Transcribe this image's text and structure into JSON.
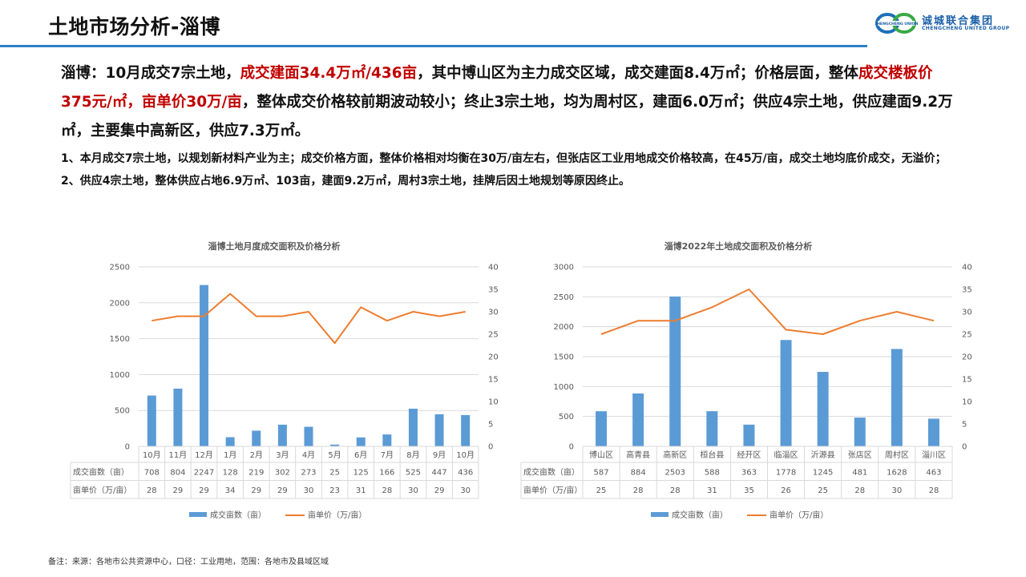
{
  "header": {
    "title": "土地市场分析-淄博",
    "logo": {
      "cn": "诚城联合集团",
      "en": "CHENGCHENG UNITED GROUP",
      "badge": "CHENGCHENG UNION"
    },
    "rule_color": "#2e7fc4"
  },
  "summary": {
    "segments": [
      {
        "text": "淄博：10月成交7宗土地，",
        "red": false
      },
      {
        "text": "成交建面34.4万㎡/436亩",
        "red": true
      },
      {
        "text": "，其中博山区为主力成交区域，成交建面8.4万㎡；价格层面，整体",
        "red": false
      },
      {
        "text": "成交楼板价375元/㎡，亩单价30万/亩",
        "red": true
      },
      {
        "text": "，整体成交价格较前期波动较小；终止3宗土地，均为周村区，建面6.0万㎡；供应4宗土地，供应建面9.2万㎡，主要集中高新区，供应7.3万㎡。",
        "red": false
      }
    ]
  },
  "points": [
    "1、本月成交7宗土地，以规划新材料产业为主；成交价格方面，整体价格相对均衡在30万/亩左右，但张店区工业用地成交价格较高，在45万/亩，成交土地均底价成交，无溢价；",
    "2、供应4宗土地，整体供应占地6.9万㎡、103亩，建面9.2万㎡，周村3宗土地，挂牌后因土地规划等原因终止。"
  ],
  "footnote": "备注：来源：各地市公共资源中心，口径：工业用地，范围：各地市及县域区域",
  "colors": {
    "bar": "#5b9bd5",
    "line": "#ed7d31",
    "grid": "#d9d9d9",
    "axis_text": "#595959",
    "red": "#c00000"
  },
  "chart_data": [
    {
      "type": "bar+line",
      "title": "淄博土地月度成交面积及价格分析",
      "categories": [
        "10月",
        "11月",
        "12月",
        "1月",
        "2月",
        "3月",
        "4月",
        "5月",
        "6月",
        "7月",
        "8月",
        "9月",
        "10月"
      ],
      "series": [
        {
          "name": "成交亩数（亩）",
          "type": "bar",
          "axis": "left",
          "values": [
            708,
            804,
            2247,
            128,
            219,
            302,
            273,
            25,
            125,
            166,
            525,
            447,
            436
          ]
        },
        {
          "name": "亩单价（万/亩）",
          "type": "line",
          "axis": "right",
          "values": [
            28,
            29,
            29,
            34,
            29,
            29,
            30,
            23,
            31,
            28,
            30,
            29,
            30
          ]
        }
      ],
      "y_left": {
        "min": 0,
        "max": 2500,
        "ticks": [
          0,
          500,
          1000,
          1500,
          2000,
          2500
        ]
      },
      "y_right": {
        "min": 0,
        "max": 40,
        "ticks": [
          0,
          5,
          10,
          15,
          20,
          25,
          30,
          35,
          40
        ]
      },
      "data_table": true,
      "legend_position": "bottom",
      "grid": true
    },
    {
      "type": "bar+line",
      "title": "淄博2022年土地成交面积及价格分析",
      "categories": [
        "博山区",
        "高青县",
        "高新区",
        "桓台县",
        "经开区",
        "临淄区",
        "沂源县",
        "张店区",
        "周村区",
        "淄川区"
      ],
      "series": [
        {
          "name": "成交亩数（亩）",
          "type": "bar",
          "axis": "left",
          "values": [
            587,
            884,
            2503,
            588,
            363,
            1778,
            1245,
            481,
            1628,
            463
          ]
        },
        {
          "name": "亩单价（万/亩）",
          "type": "line",
          "axis": "right",
          "values": [
            25,
            28,
            28,
            31,
            35,
            26,
            25,
            28,
            30,
            28
          ]
        }
      ],
      "y_left": {
        "min": 0,
        "max": 3000,
        "ticks": [
          0,
          500,
          1000,
          1500,
          2000,
          2500,
          3000
        ]
      },
      "y_right": {
        "min": 0,
        "max": 40,
        "ticks": [
          0,
          5,
          10,
          15,
          20,
          25,
          30,
          35,
          40
        ]
      },
      "data_table": true,
      "legend_position": "bottom",
      "grid": true
    }
  ]
}
